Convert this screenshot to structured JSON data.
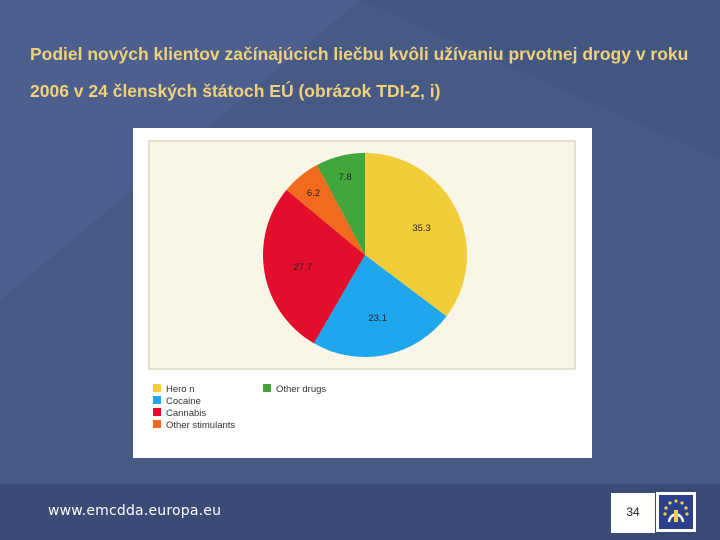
{
  "slide": {
    "title": "Podiel nových klientov začínajúcich liečbu kvôli užívaniu prvotnej drogy v roku 2006 v 24 členských štátoch EÚ (obrázok TDI-2, i)"
  },
  "footer": {
    "url": "www.emcdda.europa.eu",
    "page_number": "34"
  },
  "colors": {
    "background": "#475a85",
    "title": "#f0d27a",
    "plot_area": "#faf6e7"
  },
  "chart_data": {
    "type": "pie",
    "labels": [
      "Heroin",
      "Cocaine",
      "Cannabis",
      "Other stimulants",
      "Other drugs"
    ],
    "legend_labels": [
      "Hero n",
      "Cocaine",
      "Cannabis",
      "Other stimulants",
      "Other drugs"
    ],
    "values": [
      35.3,
      23.1,
      27.7,
      6.2,
      7.8
    ],
    "value_labels": [
      "35.3",
      "23.1",
      "27.7",
      "6.2",
      "7.8"
    ],
    "colors": [
      "#f0cd39",
      "#1fa7ee",
      "#e30e2b",
      "#f06a20",
      "#3fa53c"
    ],
    "start_angle_deg": 0,
    "direction": "clockwise",
    "legend_position": "bottom"
  }
}
